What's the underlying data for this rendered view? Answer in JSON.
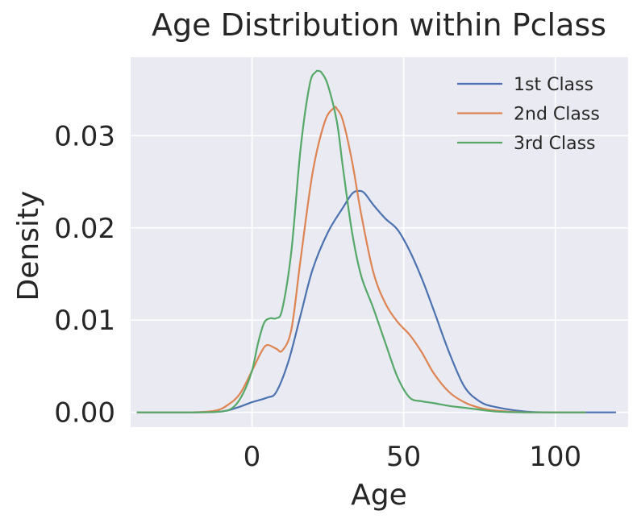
{
  "chart_data": {
    "type": "line",
    "title": "Age Distribution within Pclass",
    "xlabel": "Age",
    "ylabel": "Density",
    "xlim": [
      -40,
      124
    ],
    "ylim": [
      -0.0016,
      0.0385
    ],
    "xticks": [
      0,
      50,
      100
    ],
    "xtick_labels": [
      "0",
      "50",
      "100"
    ],
    "yticks": [
      0.0,
      0.01,
      0.02,
      0.03
    ],
    "ytick_labels": [
      "0.00",
      "0.01",
      "0.02",
      "0.03"
    ],
    "grid": true,
    "legend_position": "top-right",
    "background_color": "#eaeaf2",
    "grid_color": "#ffffff",
    "series": [
      {
        "name": "1st Class",
        "color": "#4c72b0",
        "x": [
          -38,
          -20,
          -10,
          -5,
          0,
          5,
          8,
          12,
          16,
          20,
          25,
          30,
          33,
          35,
          37,
          40,
          44,
          48,
          52,
          56,
          60,
          65,
          70,
          75,
          80,
          90,
          100,
          110,
          120
        ],
        "y": [
          0.0,
          0.0,
          0.0001,
          0.0005,
          0.0011,
          0.0016,
          0.0022,
          0.0055,
          0.0105,
          0.0155,
          0.0195,
          0.0222,
          0.0237,
          0.024,
          0.0238,
          0.0225,
          0.021,
          0.0198,
          0.0175,
          0.0145,
          0.011,
          0.0065,
          0.0028,
          0.0012,
          0.0006,
          0.0001,
          0.0,
          0.0,
          0.0
        ]
      },
      {
        "name": "2nd Class",
        "color": "#dd8452",
        "x": [
          -38,
          -20,
          -12,
          -8,
          -4,
          0,
          3,
          5,
          8,
          10,
          13,
          16,
          20,
          24,
          27,
          28,
          30,
          33,
          36,
          40,
          44,
          48,
          52,
          56,
          60,
          65,
          70,
          75,
          80,
          90,
          100,
          110
        ],
        "y": [
          0.0,
          0.0,
          0.0002,
          0.0008,
          0.002,
          0.0045,
          0.0065,
          0.0073,
          0.0069,
          0.0067,
          0.009,
          0.0165,
          0.026,
          0.0315,
          0.033,
          0.0329,
          0.0316,
          0.0272,
          0.0215,
          0.0152,
          0.0118,
          0.0098,
          0.0084,
          0.0065,
          0.0042,
          0.0022,
          0.0011,
          0.0005,
          0.0002,
          0.0,
          0.0,
          0.0
        ]
      },
      {
        "name": "3rd Class",
        "color": "#55a868",
        "x": [
          -38,
          -20,
          -10,
          -6,
          -3,
          0,
          2,
          4,
          6,
          8,
          10,
          13,
          16,
          19,
          21,
          22,
          23,
          25,
          28,
          30,
          33,
          36,
          40,
          44,
          48,
          52,
          56,
          60,
          65,
          70,
          75,
          80,
          90,
          110
        ],
        "y": [
          0.0,
          0.0,
          0.0001,
          0.0006,
          0.002,
          0.0045,
          0.0075,
          0.0097,
          0.0102,
          0.0102,
          0.0112,
          0.0175,
          0.0285,
          0.0355,
          0.0369,
          0.037,
          0.0368,
          0.0355,
          0.0315,
          0.0265,
          0.0195,
          0.0148,
          0.0113,
          0.0075,
          0.0038,
          0.0016,
          0.0012,
          0.001,
          0.0007,
          0.0005,
          0.0003,
          0.0001,
          0.0,
          0.0
        ]
      }
    ]
  }
}
